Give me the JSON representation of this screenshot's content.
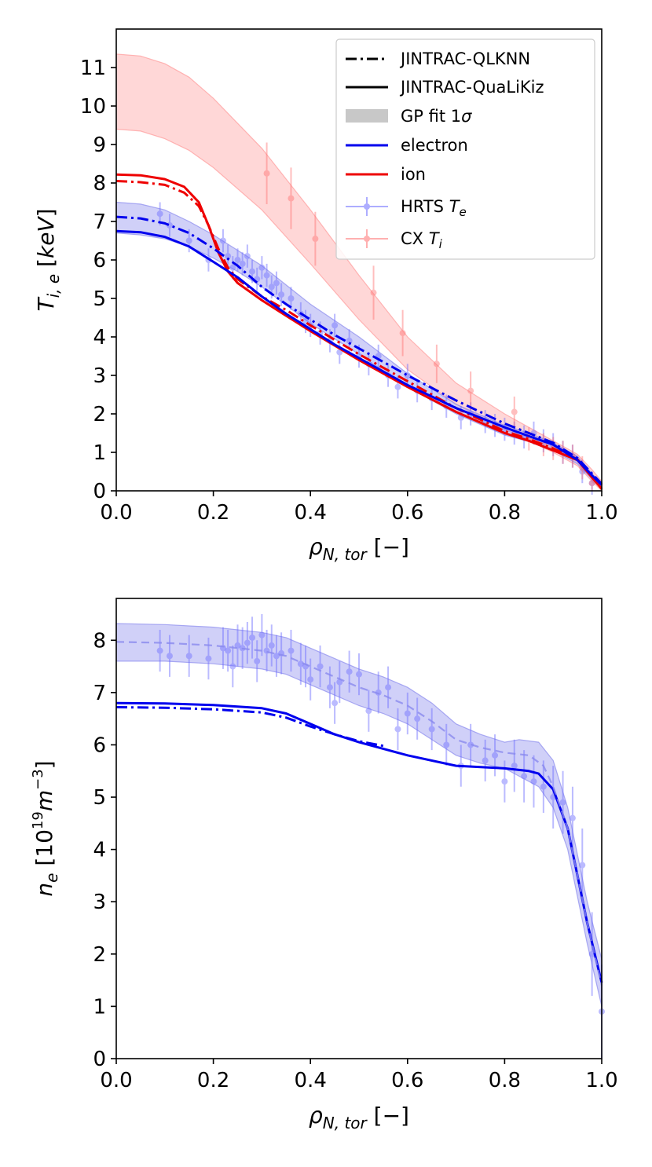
{
  "chart_data": [
    {
      "type": "line",
      "id": "temperature",
      "xlabel": "ρ_{N,tor} [−]",
      "ylabel": "T_{i,e} [keV]",
      "xlim": [
        0,
        1
      ],
      "ylim": [
        0,
        12
      ],
      "x_ticks": [
        "0.0",
        "0.2",
        "0.4",
        "0.6",
        "0.8",
        "1.0"
      ],
      "y_ticks": [
        "0",
        "1",
        "2",
        "3",
        "4",
        "5",
        "6",
        "7",
        "8",
        "9",
        "10",
        "11"
      ],
      "legend": {
        "position": "top-right",
        "entries": [
          {
            "label": "JINTRAC-QLKNN",
            "style": "dashdot",
            "color": "#000000"
          },
          {
            "label": "JINTRAC-QuaLiKiz",
            "style": "solid",
            "color": "#000000"
          },
          {
            "label": "GP fit 1σ",
            "style": "band",
            "color": "#c8c8c8"
          },
          {
            "label": "electron",
            "style": "solid",
            "color": "#0000ee"
          },
          {
            "label": "ion",
            "style": "solid",
            "color": "#ee0000"
          },
          {
            "label": "HRTS T_e",
            "style": "errorbar",
            "color": "#6b6bff"
          },
          {
            "label": "CX T_i",
            "style": "errorbar",
            "color": "#ff7070"
          }
        ]
      },
      "series": [
        {
          "name": "ion JINTRAC-QuaLiKiz",
          "color": "#ee0000",
          "style": "solid",
          "x": [
            0,
            0.05,
            0.1,
            0.14,
            0.17,
            0.19,
            0.21,
            0.23,
            0.25,
            0.3,
            0.35,
            0.4,
            0.5,
            0.6,
            0.7,
            0.8,
            0.85,
            0.9,
            0.95,
            0.98,
            1.0
          ],
          "y": [
            8.22,
            8.2,
            8.1,
            7.9,
            7.5,
            6.9,
            6.2,
            5.7,
            5.4,
            4.95,
            4.55,
            4.15,
            3.4,
            2.7,
            2.05,
            1.5,
            1.3,
            1.05,
            0.8,
            0.35,
            0.05
          ]
        },
        {
          "name": "ion JINTRAC-QLKNN",
          "color": "#ee0000",
          "style": "dashdot",
          "x": [
            0,
            0.05,
            0.1,
            0.14,
            0.17,
            0.19,
            0.21,
            0.23,
            0.25,
            0.3,
            0.35,
            0.4,
            0.5,
            0.6,
            0.7,
            0.8,
            0.85,
            0.9,
            0.95,
            0.98,
            1.0
          ],
          "y": [
            8.05,
            8.02,
            7.95,
            7.75,
            7.4,
            6.9,
            6.3,
            5.8,
            5.5,
            5.05,
            4.7,
            4.3,
            3.55,
            2.85,
            2.15,
            1.55,
            1.35,
            1.1,
            0.82,
            0.38,
            0.05
          ]
        },
        {
          "name": "electron JINTRAC-QuaLiKiz",
          "color": "#0000ee",
          "style": "solid",
          "x": [
            0,
            0.05,
            0.1,
            0.15,
            0.2,
            0.25,
            0.3,
            0.35,
            0.4,
            0.45,
            0.5,
            0.6,
            0.7,
            0.8,
            0.85,
            0.9,
            0.95,
            0.98,
            1.0
          ],
          "y": [
            6.75,
            6.72,
            6.6,
            6.35,
            5.95,
            5.55,
            5.05,
            4.6,
            4.2,
            3.8,
            3.45,
            2.75,
            2.15,
            1.65,
            1.42,
            1.2,
            0.8,
            0.4,
            0.15
          ]
        },
        {
          "name": "electron JINTRAC-QLKNN",
          "color": "#0000ee",
          "style": "dashdot",
          "x": [
            0,
            0.05,
            0.1,
            0.15,
            0.2,
            0.25,
            0.3,
            0.35,
            0.4,
            0.45,
            0.5,
            0.6,
            0.7,
            0.8,
            0.85,
            0.9,
            0.95,
            0.98,
            1.0
          ],
          "y": [
            7.12,
            7.08,
            6.95,
            6.7,
            6.3,
            5.85,
            5.3,
            4.85,
            4.45,
            4.05,
            3.7,
            3.0,
            2.35,
            1.75,
            1.5,
            1.25,
            0.85,
            0.45,
            0.18
          ]
        }
      ],
      "bands": [
        {
          "name": "ion GP fit 1σ",
          "color": "#ff9a9a",
          "x": [
            0,
            0.05,
            0.1,
            0.15,
            0.2,
            0.3,
            0.4,
            0.5,
            0.6,
            0.7,
            0.8,
            0.9,
            0.95,
            0.98,
            1.0
          ],
          "upper": [
            11.35,
            11.3,
            11.1,
            10.75,
            10.2,
            8.9,
            7.3,
            5.6,
            4.0,
            2.8,
            2.0,
            1.3,
            0.95,
            0.55,
            0.25
          ],
          "lower": [
            9.4,
            9.35,
            9.15,
            8.85,
            8.4,
            7.3,
            5.9,
            4.45,
            3.15,
            2.25,
            1.6,
            1.0,
            0.65,
            0.25,
            0.0
          ]
        },
        {
          "name": "electron GP fit 1σ",
          "color": "#8a8aee",
          "x": [
            0,
            0.05,
            0.1,
            0.15,
            0.2,
            0.25,
            0.3,
            0.4,
            0.5,
            0.6,
            0.7,
            0.8,
            0.85,
            0.9,
            0.95,
            0.98,
            1.0
          ],
          "upper": [
            7.5,
            7.45,
            7.3,
            7.0,
            6.65,
            6.25,
            5.85,
            4.85,
            4.0,
            3.05,
            2.25,
            1.7,
            1.5,
            1.25,
            0.9,
            0.45,
            0.2
          ],
          "lower": [
            6.7,
            6.65,
            6.55,
            6.35,
            6.05,
            5.7,
            5.3,
            4.35,
            3.55,
            2.7,
            2.0,
            1.45,
            1.28,
            1.05,
            0.7,
            0.3,
            0.05
          ]
        }
      ],
      "points": [
        {
          "name": "HRTS T_e",
          "color": "#6b6bff",
          "x": [
            0.09,
            0.11,
            0.15,
            0.19,
            0.22,
            0.23,
            0.24,
            0.25,
            0.26,
            0.27,
            0.28,
            0.29,
            0.3,
            0.31,
            0.32,
            0.33,
            0.34,
            0.36,
            0.38,
            0.39,
            0.4,
            0.42,
            0.44,
            0.45,
            0.46,
            0.48,
            0.5,
            0.52,
            0.54,
            0.56,
            0.58,
            0.6,
            0.62,
            0.65,
            0.68,
            0.71,
            0.73,
            0.76,
            0.78,
            0.8,
            0.82,
            0.84,
            0.86,
            0.88,
            0.9,
            0.92,
            0.94,
            0.96,
            0.98
          ],
          "y": [
            7.2,
            6.9,
            6.5,
            6.0,
            6.5,
            6.1,
            5.8,
            6.0,
            5.9,
            6.1,
            5.7,
            5.5,
            5.8,
            5.6,
            5.3,
            5.4,
            5.1,
            5.0,
            4.6,
            4.4,
            4.3,
            4.1,
            3.9,
            4.3,
            3.6,
            3.9,
            3.5,
            3.3,
            3.5,
            3.0,
            2.7,
            3.0,
            2.6,
            2.4,
            2.2,
            1.9,
            2.0,
            1.8,
            1.7,
            1.6,
            1.5,
            1.4,
            1.5,
            1.3,
            1.2,
            1.0,
            0.9,
            0.5,
            0.2
          ],
          "err": [
            0.3,
            0.3,
            0.3,
            0.3,
            0.3,
            0.3,
            0.3,
            0.3,
            0.3,
            0.3,
            0.3,
            0.3,
            0.3,
            0.3,
            0.3,
            0.3,
            0.3,
            0.3,
            0.3,
            0.3,
            0.3,
            0.3,
            0.3,
            0.3,
            0.3,
            0.3,
            0.3,
            0.3,
            0.3,
            0.3,
            0.3,
            0.3,
            0.3,
            0.3,
            0.3,
            0.3,
            0.3,
            0.3,
            0.3,
            0.3,
            0.3,
            0.3,
            0.3,
            0.3,
            0.3,
            0.3,
            0.3,
            0.3,
            0.3
          ]
        },
        {
          "name": "CX T_i",
          "color": "#ff7070",
          "x": [
            0.31,
            0.36,
            0.41,
            0.53,
            0.59,
            0.66,
            0.73,
            0.82,
            0.85,
            0.88,
            0.9,
            0.92,
            0.94,
            0.96,
            0.98
          ],
          "y": [
            8.25,
            7.6,
            6.55,
            5.15,
            4.1,
            3.3,
            2.6,
            2.05,
            1.35,
            1.2,
            1.1,
            1.0,
            0.9,
            0.6,
            0.2
          ],
          "err": [
            0.8,
            0.8,
            0.7,
            0.7,
            0.6,
            0.5,
            0.5,
            0.4,
            0.3,
            0.3,
            0.3,
            0.3,
            0.3,
            0.3,
            0.2
          ]
        }
      ]
    },
    {
      "type": "line",
      "id": "density",
      "xlabel": "ρ_{N,tor} [−]",
      "ylabel": "n_e [10^19 m^−3]",
      "xlim": [
        0,
        1
      ],
      "ylim": [
        0,
        8.8
      ],
      "x_ticks": [
        "0.0",
        "0.2",
        "0.4",
        "0.6",
        "0.8",
        "1.0"
      ],
      "y_ticks": [
        "0",
        "1",
        "2",
        "3",
        "4",
        "5",
        "6",
        "7",
        "8"
      ],
      "series": [
        {
          "name": "electron JINTRAC-QuaLiKiz",
          "color": "#0000ee",
          "style": "solid",
          "x": [
            0,
            0.1,
            0.2,
            0.3,
            0.35,
            0.4,
            0.45,
            0.5,
            0.6,
            0.7,
            0.8,
            0.85,
            0.87,
            0.9,
            0.93,
            0.95,
            0.97,
            1.0
          ],
          "y": [
            6.8,
            6.79,
            6.76,
            6.7,
            6.6,
            6.4,
            6.2,
            6.05,
            5.8,
            5.6,
            5.55,
            5.5,
            5.45,
            5.15,
            4.4,
            3.5,
            2.6,
            1.45
          ]
        },
        {
          "name": "electron JINTRAC-QLKNN",
          "color": "#0000ee",
          "style": "dashdot",
          "x": [
            0,
            0.1,
            0.2,
            0.3,
            0.35,
            0.4,
            0.45,
            0.5,
            0.55
          ],
          "y": [
            6.72,
            6.71,
            6.68,
            6.62,
            6.52,
            6.35,
            6.2,
            6.07,
            5.98
          ]
        },
        {
          "name": "GP fit mean",
          "color": "#8a8aee",
          "style": "dashed",
          "x": [
            0,
            0.1,
            0.2,
            0.3,
            0.35,
            0.4,
            0.45,
            0.5,
            0.55,
            0.6,
            0.65,
            0.7,
            0.75,
            0.8,
            0.85,
            0.88,
            0.9,
            0.93,
            0.95,
            0.97,
            1.0
          ],
          "y": [
            7.97,
            7.95,
            7.9,
            7.8,
            7.7,
            7.5,
            7.3,
            7.1,
            6.95,
            6.75,
            6.45,
            6.1,
            5.95,
            5.85,
            5.8,
            5.6,
            5.2,
            4.4,
            3.5,
            2.6,
            1.4
          ]
        }
      ],
      "bands": [
        {
          "name": "electron GP fit 1σ",
          "color": "#8a8aee",
          "x": [
            0,
            0.1,
            0.2,
            0.3,
            0.35,
            0.4,
            0.45,
            0.5,
            0.55,
            0.6,
            0.65,
            0.7,
            0.75,
            0.8,
            0.83,
            0.87,
            0.9,
            0.93,
            0.95,
            0.97,
            1.0
          ],
          "upper": [
            8.32,
            8.3,
            8.25,
            8.15,
            8.05,
            7.85,
            7.65,
            7.45,
            7.3,
            7.1,
            6.8,
            6.4,
            6.2,
            6.05,
            6.1,
            6.05,
            5.7,
            4.8,
            3.9,
            3.0,
            1.9
          ],
          "lower": [
            7.6,
            7.6,
            7.55,
            7.45,
            7.35,
            7.15,
            6.95,
            6.75,
            6.6,
            6.4,
            6.1,
            5.8,
            5.65,
            5.55,
            5.4,
            5.2,
            4.8,
            4.0,
            3.1,
            2.2,
            1.0
          ]
        }
      ],
      "points": [
        {
          "name": "HRTS n_e",
          "color": "#6b6bff",
          "x": [
            0.09,
            0.11,
            0.15,
            0.19,
            0.22,
            0.23,
            0.24,
            0.25,
            0.26,
            0.27,
            0.28,
            0.29,
            0.3,
            0.31,
            0.32,
            0.33,
            0.34,
            0.36,
            0.38,
            0.39,
            0.4,
            0.42,
            0.44,
            0.45,
            0.46,
            0.48,
            0.5,
            0.52,
            0.54,
            0.56,
            0.58,
            0.6,
            0.62,
            0.65,
            0.68,
            0.71,
            0.73,
            0.76,
            0.78,
            0.8,
            0.82,
            0.84,
            0.86,
            0.88,
            0.9,
            0.92,
            0.94,
            0.96,
            0.98,
            1.0
          ],
          "y": [
            7.8,
            7.7,
            7.7,
            7.65,
            7.85,
            7.8,
            7.5,
            7.9,
            7.85,
            7.95,
            8.05,
            7.6,
            8.1,
            7.8,
            7.9,
            7.7,
            7.75,
            7.8,
            7.55,
            7.5,
            7.25,
            7.5,
            7.1,
            6.8,
            7.2,
            7.4,
            7.35,
            6.65,
            7.0,
            7.1,
            6.3,
            6.6,
            6.5,
            6.3,
            6.0,
            5.6,
            6.0,
            5.7,
            5.8,
            5.3,
            5.6,
            5.4,
            5.3,
            5.2,
            5.0,
            4.9,
            4.6,
            3.7,
            2.0,
            0.9
          ],
          "err": [
            0.4,
            0.4,
            0.4,
            0.4,
            0.4,
            0.4,
            0.4,
            0.4,
            0.4,
            0.4,
            0.4,
            0.4,
            0.4,
            0.4,
            0.4,
            0.4,
            0.4,
            0.4,
            0.4,
            0.4,
            0.4,
            0.4,
            0.4,
            0.4,
            0.4,
            0.4,
            0.4,
            0.4,
            0.4,
            0.4,
            0.4,
            0.4,
            0.4,
            0.4,
            0.4,
            0.4,
            0.4,
            0.4,
            0.4,
            0.4,
            0.5,
            0.5,
            0.5,
            0.5,
            0.6,
            0.6,
            0.6,
            0.7,
            0.8,
            0.9
          ]
        }
      ]
    }
  ]
}
